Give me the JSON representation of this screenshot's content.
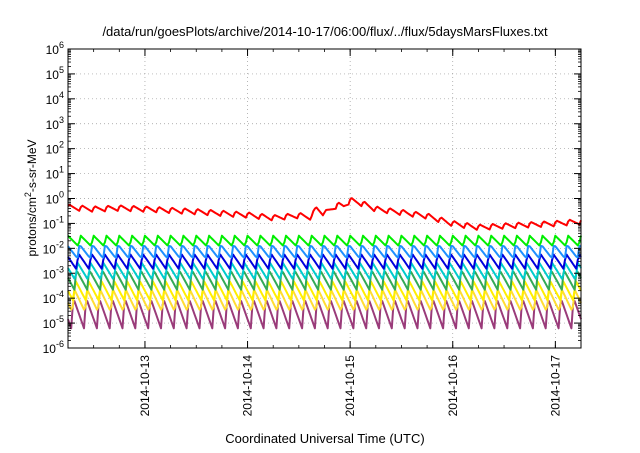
{
  "chart_data": {
    "type": "line",
    "title": "/data/run/goesPlots/archive/2014-10-17/06:00/flux/../flux/5daysMarsFluxes.txt",
    "xlabel": "Coordinated Universal Time (UTC)",
    "ylabel_base": "protons/cm",
    "ylabel_sup": "2",
    "ylabel_rest": "-s-sr-MeV",
    "y_scale": "log",
    "ylim_exponents": [
      -6,
      6
    ],
    "y_ticks": [
      {
        "base": "10",
        "exp": "6",
        "value": 1000000.0
      },
      {
        "base": "10",
        "exp": "5",
        "value": 100000.0
      },
      {
        "base": "10",
        "exp": "4",
        "value": 10000.0
      },
      {
        "base": "10",
        "exp": "3",
        "value": 1000.0
      },
      {
        "base": "10",
        "exp": "2",
        "value": 100.0
      },
      {
        "base": "10",
        "exp": "1",
        "value": 10.0
      },
      {
        "base": "10",
        "exp": "0",
        "value": 1.0
      },
      {
        "base": "10",
        "exp": "-1",
        "value": 0.1
      },
      {
        "base": "10",
        "exp": "-2",
        "value": 0.01
      },
      {
        "base": "10",
        "exp": "-3",
        "value": 0.001
      },
      {
        "base": "10",
        "exp": "-4",
        "value": 0.0001
      },
      {
        "base": "10",
        "exp": "-5",
        "value": 1e-05
      },
      {
        "base": "10",
        "exp": "-6",
        "value": 1e-06
      }
    ],
    "xlim": [
      "2014-10-12 06:00",
      "2014-10-17 06:00"
    ],
    "x_ticks": [
      {
        "label": "2014-10-13",
        "value": "2014-10-13 00:00"
      },
      {
        "label": "2014-10-14",
        "value": "2014-10-14 00:00"
      },
      {
        "label": "2014-10-15",
        "value": "2014-10-15 00:00"
      },
      {
        "label": "2014-10-16",
        "value": "2014-10-16 00:00"
      },
      {
        "label": "2014-10-17",
        "value": "2014-10-17 00:00"
      }
    ],
    "grid": true,
    "legend": "none",
    "series": [
      {
        "color": "#ff0000",
        "sawtooth_period_hours": 3,
        "points": [
          [
            "2014-10-12 06:00",
            0.45
          ],
          [
            "2014-10-12 12:00",
            0.38
          ],
          [
            "2014-10-12 18:00",
            0.42
          ],
          [
            "2014-10-13 00:00",
            0.38
          ],
          [
            "2014-10-13 12:00",
            0.3
          ],
          [
            "2014-10-14 00:00",
            0.22
          ],
          [
            "2014-10-14 06:00",
            0.17
          ],
          [
            "2014-10-14 12:00",
            0.21
          ],
          [
            "2014-10-14 15:00",
            0.18
          ],
          [
            "2014-10-14 16:00",
            0.42
          ],
          [
            "2014-10-14 18:00",
            0.25
          ],
          [
            "2014-10-14 21:00",
            0.55
          ],
          [
            "2014-10-14 22:30",
            0.5
          ],
          [
            "2014-10-15 00:00",
            0.85
          ],
          [
            "2014-10-15 03:00",
            0.62
          ],
          [
            "2014-10-15 06:00",
            0.38
          ],
          [
            "2014-10-15 12:00",
            0.28
          ],
          [
            "2014-10-15 18:00",
            0.2
          ],
          [
            "2014-10-16 00:00",
            0.1
          ],
          [
            "2014-10-16 06:00",
            0.07
          ],
          [
            "2014-10-16 12:00",
            0.08
          ],
          [
            "2014-10-17 00:00",
            0.1
          ],
          [
            "2014-10-17 06:00",
            0.12
          ]
        ]
      },
      {
        "color": "#00ee00",
        "sawtooth_period_hours": 3,
        "points": [
          [
            "2014-10-12 06:00",
            0.02
          ],
          [
            "2014-10-17 06:00",
            0.02
          ]
        ]
      },
      {
        "color": "#1e90ff",
        "sawtooth_period_hours": 3,
        "points": [
          [
            "2014-10-12 06:00",
            0.0075
          ],
          [
            "2014-10-17 06:00",
            0.0075
          ]
        ]
      },
      {
        "color": "#0000dd",
        "sawtooth_period_hours": 3,
        "points": [
          [
            "2014-10-12 06:00",
            0.003
          ],
          [
            "2014-10-17 06:00",
            0.003
          ]
        ]
      },
      {
        "color": "#00cccc",
        "sawtooth_period_hours": 3,
        "points": [
          [
            "2014-10-12 06:00",
            0.0012
          ],
          [
            "2014-10-17 06:00",
            0.0012
          ]
        ]
      },
      {
        "color": "#33aa55",
        "sawtooth_period_hours": 3,
        "points": [
          [
            "2014-10-12 06:00",
            0.00055
          ],
          [
            "2014-10-17 06:00",
            0.00055
          ]
        ]
      },
      {
        "color": "#ffee00",
        "sawtooth_period_hours": 3,
        "points": [
          [
            "2014-10-12 06:00",
            0.0002
          ],
          [
            "2014-10-17 06:00",
            0.0002
          ]
        ]
      },
      {
        "color": "#ffdd33",
        "sawtooth_period_hours": 3,
        "points": [
          [
            "2014-10-12 06:00",
            8e-05
          ],
          [
            "2014-10-17 06:00",
            8e-05
          ]
        ]
      },
      {
        "color": "#9a3b7a",
        "sawtooth_period_hours": 3,
        "points": [
          [
            "2014-10-12 06:00",
            2.5e-05
          ],
          [
            "2014-10-17 06:00",
            2.5e-05
          ]
        ]
      }
    ]
  }
}
